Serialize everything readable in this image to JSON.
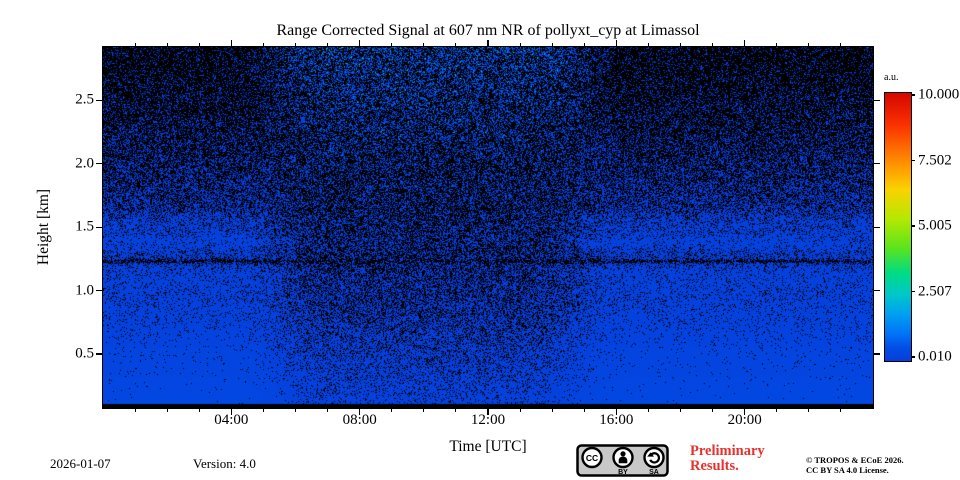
{
  "chart_data": {
    "type": "heatmap",
    "title": "Range Corrected Signal at 607 nm NR of pollyxt_cyp at Limassol",
    "xlabel": "Time [UTC]",
    "ylabel": "Height [km]",
    "x_axis": {
      "range_hours": [
        0,
        24
      ],
      "major_ticks": [
        {
          "hour": 4,
          "label": "04:00"
        },
        {
          "hour": 8,
          "label": "08:00"
        },
        {
          "hour": 12,
          "label": "12:00"
        },
        {
          "hour": 16,
          "label": "16:00"
        },
        {
          "hour": 20,
          "label": "20:00"
        }
      ],
      "minor_tick_hours": [
        1,
        2,
        3,
        5,
        6,
        7,
        9,
        10,
        11,
        13,
        14,
        15,
        17,
        18,
        19,
        21,
        22,
        23
      ]
    },
    "y_axis": {
      "range_km": [
        0.075,
        2.92
      ],
      "major_ticks": [
        {
          "km": 0.5,
          "label": "0.5"
        },
        {
          "km": 1.0,
          "label": "1.0"
        },
        {
          "km": 1.5,
          "label": "1.5"
        },
        {
          "km": 2.0,
          "label": "2.0"
        },
        {
          "km": 2.5,
          "label": "2.5"
        }
      ]
    },
    "colorbar": {
      "unit_label": "a.u.",
      "min": 0.01,
      "max": 10.0,
      "tick_labels": [
        "10.000",
        "7.502",
        "5.005",
        "2.507",
        "0.010"
      ],
      "colormap": "jet"
    },
    "colormap_stops": [
      [
        0.0,
        5,
        62,
        219
      ],
      [
        0.05,
        2,
        77,
        230
      ],
      [
        0.1,
        0,
        115,
        248
      ],
      [
        0.175,
        0,
        160,
        240
      ],
      [
        0.25,
        0,
        200,
        200
      ],
      [
        0.33,
        0,
        220,
        130
      ],
      [
        0.42,
        90,
        228,
        30
      ],
      [
        0.53,
        180,
        232,
        0
      ],
      [
        0.64,
        250,
        210,
        0
      ],
      [
        0.76,
        255,
        130,
        0
      ],
      [
        0.88,
        250,
        50,
        0
      ],
      [
        1.0,
        215,
        5,
        0
      ]
    ],
    "description": "Speckled photon-counting lidar quicklook: dense blue signal at low heights fading to sparse specks aloft; darker low-SNR region ~05:00-15:00 UTC with cyan/green background-noise specks at high altitude; bright aerosol bands near 1.1-1.5 km at night; solid black strip below ~0.1 km.",
    "noise_model": {
      "seed": 42,
      "day_center_hour": 10.15,
      "day_half_width_hours": 5.0,
      "day_edge_power": 8,
      "day_absorption": 0.62,
      "signal_amplitude": 2.6,
      "signal_scale_height_km": 0.78,
      "layers": [
        {
          "h": 1.38,
          "amp": 0.5,
          "w": 0.06
        },
        {
          "h": 1.52,
          "amp": 0.25,
          "w": 0.09
        },
        {
          "h": 1.1,
          "amp": 0.25,
          "w": 0.1
        }
      ],
      "dip": {
        "h": 1.23,
        "amp": 0.5,
        "w": 0.018
      },
      "bg_amp": 0.3,
      "bg_h_offset": 0.25,
      "bg_h_norm": 3.15,
      "bg_power": 3,
      "bg_tail_exp": 1.3,
      "lit_prob_k": 2.5,
      "color_sig_scale": 0.15,
      "black_below_km": 0.105
    }
  },
  "footer": {
    "date": "2026-01-07",
    "version_label": "Version: 4.0",
    "preliminary_line1": "Preliminary",
    "preliminary_line2": "Results.",
    "copyright_line1": "© TROPOS & ECoE 2026.",
    "copyright_line2": "CC BY SA 4.0 License.",
    "license_badge": {
      "cc": "CC",
      "by": "BY",
      "sa": "SA"
    }
  },
  "colors": {
    "preliminary_red": "#e8312e",
    "badge_background": "#c8c8c8",
    "plot_background": "#000000"
  }
}
